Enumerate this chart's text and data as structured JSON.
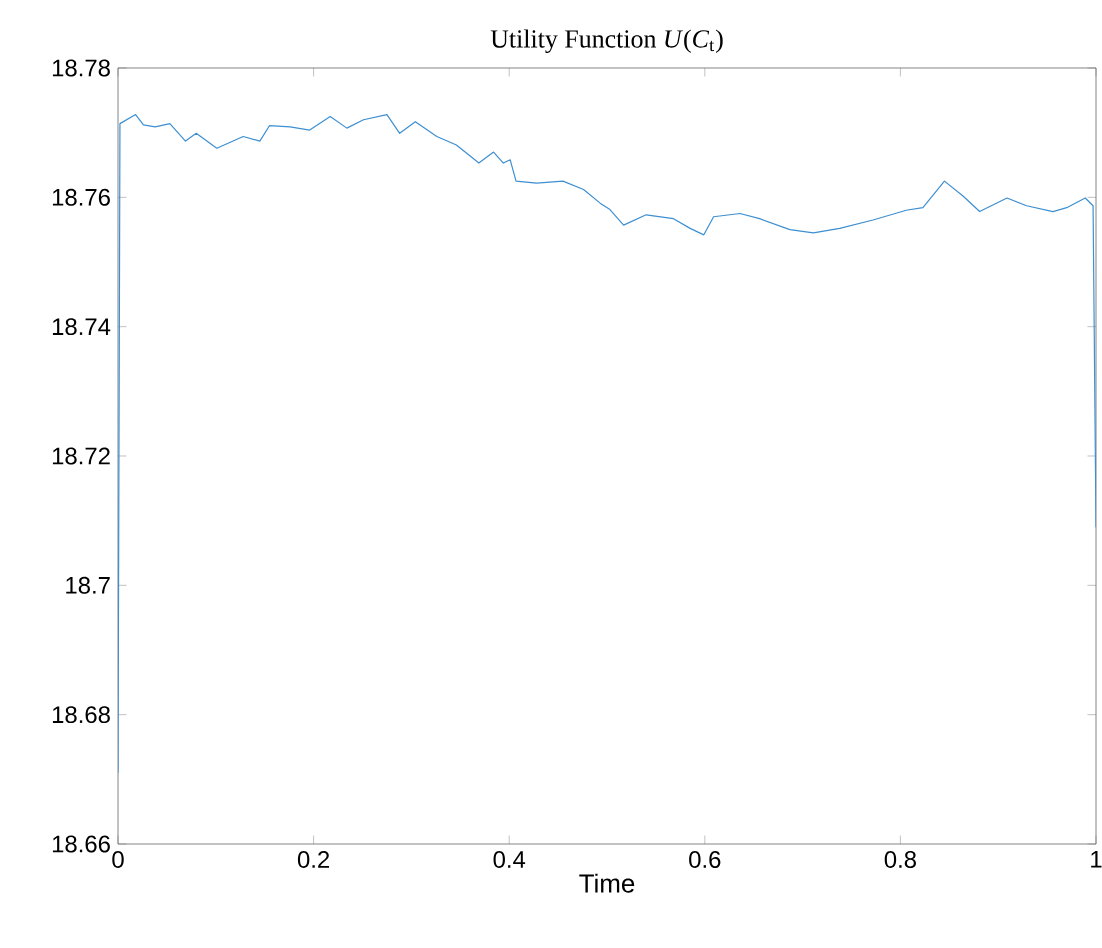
{
  "chart_data": {
    "type": "line",
    "title": "Utility Function *U*(*C*$_{t}$)",
    "xlabel": "Time",
    "xlim": [
      0,
      1
    ],
    "xticks": [
      0,
      0.2,
      0.4,
      0.6,
      0.8,
      1
    ],
    "ylim": [
      18.66,
      18.78
    ],
    "yticks": [
      18.66,
      18.68,
      18.7,
      18.72,
      18.74,
      18.76,
      18.78
    ],
    "grid": false,
    "marker": "none",
    "line_style": "solid",
    "series": [
      {
        "color": "#3d8fd1",
        "x": [
          0,
          0.002,
          0.018,
          0.026,
          0.038,
          0.053,
          0.069,
          0.08,
          0.101,
          0.128,
          0.145,
          0.155,
          0.176,
          0.196,
          0.217,
          0.234,
          0.251,
          0.275,
          0.288,
          0.304,
          0.326,
          0.346,
          0.369,
          0.384,
          0.394,
          0.401,
          0.407,
          0.428,
          0.455,
          0.476,
          0.493,
          0.503,
          0.517,
          0.54,
          0.568,
          0.585,
          0.599,
          0.609,
          0.636,
          0.656,
          0.687,
          0.711,
          0.738,
          0.772,
          0.806,
          0.823,
          0.845,
          0.864,
          0.881,
          0.909,
          0.929,
          0.956,
          0.97,
          0.989,
          0.997,
          1
        ],
        "values": [
          18.671,
          18.7714,
          18.7728,
          18.7712,
          18.7709,
          18.7714,
          18.7687,
          18.7699,
          18.7676,
          18.7694,
          18.7687,
          18.7711,
          18.7709,
          18.7704,
          18.7725,
          18.7707,
          18.772,
          18.7728,
          18.7699,
          18.7717,
          18.7694,
          18.7681,
          18.7653,
          18.767,
          18.7653,
          18.7658,
          18.7625,
          18.7622,
          18.7625,
          18.7612,
          18.7591,
          18.7581,
          18.7557,
          18.7573,
          18.7567,
          18.7552,
          18.7542,
          18.757,
          18.7575,
          18.7567,
          18.755,
          18.7545,
          18.7552,
          18.7565,
          18.758,
          18.7584,
          18.7625,
          18.7602,
          18.7578,
          18.7599,
          18.7587,
          18.7578,
          18.7584,
          18.7599,
          18.7587,
          18.709
        ]
      }
    ]
  }
}
